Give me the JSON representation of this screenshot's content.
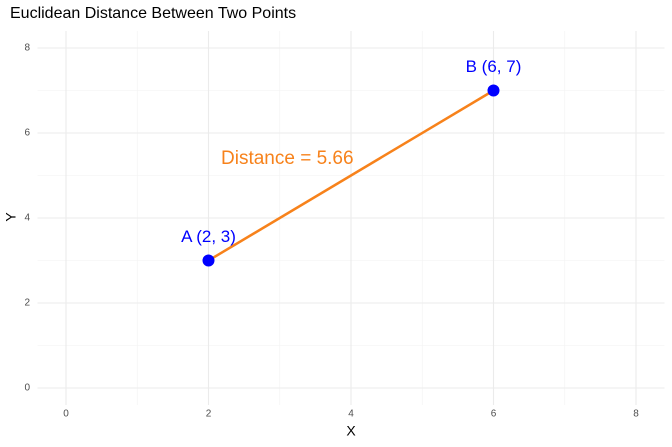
{
  "chart_data": {
    "type": "scatter",
    "title": "Euclidean Distance Between Two Points",
    "x_label": "X",
    "y_label": "Y",
    "x": [
      2,
      6
    ],
    "values": [
      3,
      7
    ],
    "point_labels": [
      "A (2, 3)",
      "B (6, 7)"
    ],
    "color": "#0000ff",
    "line_color": "#f7821b",
    "annotation": "Distance = 5.66",
    "xlim": [
      -0.4,
      8.4
    ],
    "ylim": [
      -0.4,
      8.4
    ],
    "xticks": [
      0,
      2,
      4,
      6,
      8
    ],
    "yticks": [
      0,
      2,
      4,
      6,
      8
    ],
    "minor_xticks": [
      1,
      3,
      5,
      7
    ],
    "minor_yticks": [
      1,
      3,
      5,
      7
    ],
    "grid": true
  }
}
